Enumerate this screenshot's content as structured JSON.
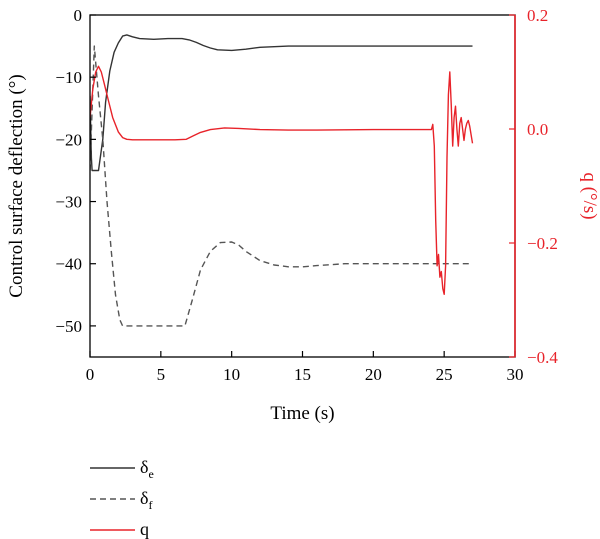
{
  "chart_data": {
    "type": "line",
    "x_axis": {
      "label": "Time (s)",
      "range": [
        0,
        30
      ],
      "ticks": [
        "0",
        "5",
        "10",
        "15",
        "20",
        "25",
        "30"
      ]
    },
    "y_left": {
      "label": "Control surface deflection (°)",
      "range": [
        -55,
        0
      ],
      "ticks": [
        "0",
        "−10",
        "−20",
        "−30",
        "−40",
        "−50"
      ]
    },
    "y_right": {
      "label": "q (°/s)",
      "range": [
        -0.4,
        0.2
      ],
      "ticks": [
        "0.2",
        "0.0",
        "−0.2",
        "−0.4"
      ],
      "color": "#e8232a"
    },
    "series": [
      {
        "name": "δe",
        "symbol": "δ",
        "subscript": "e",
        "axis": "left",
        "color": "#333333",
        "dash": "solid",
        "x": [
          0.0,
          0.1,
          0.15,
          0.2,
          0.6,
          0.9,
          1.1,
          1.4,
          1.7,
          2.0,
          2.3,
          2.6,
          3.0,
          3.5,
          4.5,
          5.5,
          6.5,
          7.0,
          7.5,
          8.0,
          8.5,
          9.0,
          10.0,
          11.0,
          12.0,
          14.0,
          16.0,
          20.0,
          24.0,
          27.0
        ],
        "y": [
          -13,
          -23,
          -25,
          -25,
          -25,
          -20,
          -14,
          -9,
          -6,
          -4.5,
          -3.4,
          -3.2,
          -3.5,
          -3.8,
          -3.9,
          -3.8,
          -3.8,
          -4.0,
          -4.4,
          -4.9,
          -5.3,
          -5.6,
          -5.7,
          -5.5,
          -5.2,
          -5.0,
          -5.0,
          -5.0,
          -5.0,
          -5.0
        ]
      },
      {
        "name": "δf",
        "symbol": "δ",
        "subscript": "f",
        "axis": "left",
        "color": "#555555",
        "dash": "dashed",
        "x": [
          0.0,
          0.3,
          0.6,
          0.9,
          1.2,
          1.5,
          1.8,
          2.1,
          2.3,
          2.5,
          3.0,
          4.0,
          5.0,
          6.0,
          6.7,
          7.2,
          7.8,
          8.5,
          9.2,
          10.0,
          10.5,
          11.0,
          12.0,
          13.0,
          14.0,
          15.0,
          16.0,
          18.0,
          20.0,
          22.0,
          24.0,
          27.0
        ],
        "y": [
          -25,
          -5,
          -13,
          -20,
          -30,
          -38,
          -45,
          -49,
          -50,
          -50,
          -50,
          -50,
          -50,
          -50,
          -50,
          -46,
          -41,
          -38,
          -36.6,
          -36.5,
          -37,
          -38,
          -39.5,
          -40.2,
          -40.5,
          -40.5,
          -40.3,
          -40,
          -40,
          -40,
          -40,
          -40
        ]
      },
      {
        "name": "q",
        "symbol": "q",
        "subscript": "",
        "axis": "right",
        "color": "#e8232a",
        "dash": "solid",
        "x": [
          0.0,
          0.2,
          0.4,
          0.6,
          0.8,
          1.0,
          1.3,
          1.6,
          2.0,
          2.3,
          2.6,
          3.0,
          4.0,
          5.0,
          6.0,
          6.8,
          7.3,
          7.8,
          8.5,
          9.5,
          10.5,
          12.0,
          14.0,
          16.0,
          20.0,
          23.0,
          24.1,
          24.2,
          24.3,
          24.4,
          24.5,
          24.6,
          24.7,
          24.8,
          24.9,
          25.0,
          25.1,
          25.2,
          25.3,
          25.4,
          25.5,
          25.6,
          25.7,
          25.8,
          25.9,
          26.0,
          26.1,
          26.2,
          26.3,
          26.4,
          26.5,
          26.6,
          26.7,
          26.8,
          26.9,
          27.0
        ],
        "y": [
          0.02,
          0.07,
          0.1,
          0.11,
          0.1,
          0.08,
          0.05,
          0.02,
          -0.005,
          -0.015,
          -0.018,
          -0.019,
          -0.019,
          -0.019,
          -0.019,
          -0.018,
          -0.012,
          -0.006,
          -0.001,
          0.002,
          0.001,
          -0.001,
          -0.002,
          -0.002,
          -0.001,
          -0.001,
          -0.001,
          0.008,
          -0.03,
          -0.16,
          -0.24,
          -0.22,
          -0.26,
          -0.25,
          -0.28,
          -0.29,
          -0.24,
          -0.05,
          0.06,
          0.1,
          0.04,
          -0.03,
          0.02,
          0.04,
          0.0,
          -0.03,
          0.01,
          0.02,
          0.0,
          -0.02,
          0.0,
          0.01,
          0.015,
          0.005,
          -0.01,
          -0.025
        ]
      }
    ]
  }
}
